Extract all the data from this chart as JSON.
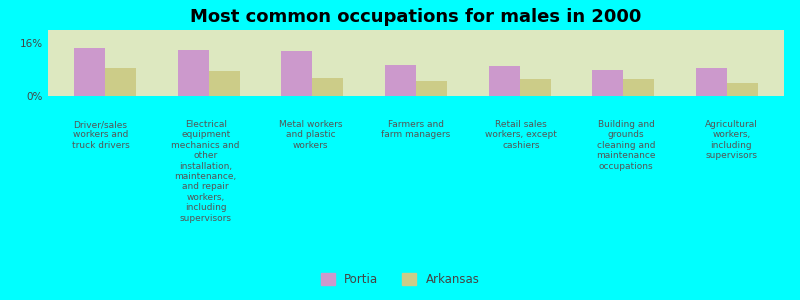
{
  "title": "Most common occupations for males in 2000",
  "categories": [
    "Driver/sales\nworkers and\ntruck drivers",
    "Electrical\nequipment\nmechanics and\nother\ninstallation,\nmaintenance,\nand repair\nworkers,\nincluding\nsupervisors",
    "Metal workers\nand plastic\nworkers",
    "Farmers and\nfarm managers",
    "Retail sales\nworkers, except\ncashiers",
    "Building and\ngrounds\ncleaning and\nmaintenance\noccupations",
    "Agricultural\nworkers,\nincluding\nsupervisors"
  ],
  "portia_values": [
    14.5,
    14.0,
    13.5,
    9.5,
    9.0,
    8.0,
    8.5
  ],
  "arkansas_values": [
    8.5,
    7.5,
    5.5,
    4.5,
    5.0,
    5.0,
    4.0
  ],
  "portia_color": "#cc99cc",
  "arkansas_color": "#cccc88",
  "background_color": "#00ffff",
  "plot_bg_color": "#dde8c0",
  "ylim": [
    0,
    20
  ],
  "yticks": [
    0,
    16
  ],
  "ytick_labels": [
    "0%",
    "16%"
  ],
  "legend_labels": [
    "Portia",
    "Arkansas"
  ],
  "bar_width": 0.3,
  "title_fontsize": 13,
  "tick_fontsize": 6.5,
  "legend_fontsize": 8.5
}
